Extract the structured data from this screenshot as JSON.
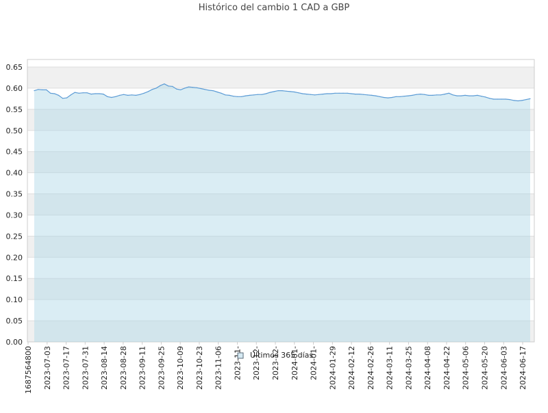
{
  "chart_data": {
    "type": "area",
    "title": "Histórico del cambio 1 CAD a GBP",
    "xlabel": "",
    "ylabel": "",
    "ylim": [
      0,
      0.65
    ],
    "y_ticks": [
      "0.00",
      "0.05",
      "0.10",
      "0.15",
      "0.20",
      "0.25",
      "0.30",
      "0.35",
      "0.40",
      "0.45",
      "0.50",
      "0.55",
      "0.60",
      "0.65"
    ],
    "x_tick_labels": [
      "1687564800",
      "2023-07-03",
      "2023-07-17",
      "2023-07-31",
      "2023-08-14",
      "2023-08-28",
      "2023-09-11",
      "2023-09-25",
      "2023-10-09",
      "2023-10-23",
      "2023-11-06",
      "2023-11-",
      "2023-12-",
      "2023-12-",
      "2024-01-",
      "2024-01-",
      "2024-01-29",
      "2024-02-12",
      "2024-02-26",
      "2024-03-11",
      "2024-03-25",
      "2024-04-08",
      "2024-04-22",
      "2024-05-06",
      "2024-05-20",
      "2024-06-03",
      "2024-06-17"
    ],
    "grid": true,
    "legend_position": "bottom-center",
    "colors": {
      "line": "#5b9bd5",
      "fill": "#add8e6",
      "band": "#f0f0f0"
    },
    "series": [
      {
        "name": "Últimos 365 días",
        "x": [
          "2023-06-24",
          "2023-06-27",
          "2023-06-30",
          "2023-07-03",
          "2023-07-06",
          "2023-07-09",
          "2023-07-12",
          "2023-07-15",
          "2023-07-18",
          "2023-07-21",
          "2023-07-24",
          "2023-07-27",
          "2023-07-30",
          "2023-08-02",
          "2023-08-05",
          "2023-08-08",
          "2023-08-11",
          "2023-08-14",
          "2023-08-17",
          "2023-08-20",
          "2023-08-23",
          "2023-08-26",
          "2023-08-29",
          "2023-09-01",
          "2023-09-04",
          "2023-09-07",
          "2023-09-10",
          "2023-09-13",
          "2023-09-16",
          "2023-09-19",
          "2023-09-22",
          "2023-09-25",
          "2023-09-28",
          "2023-10-01",
          "2023-10-04",
          "2023-10-07",
          "2023-10-10",
          "2023-10-13",
          "2023-10-16",
          "2023-10-19",
          "2023-10-22",
          "2023-10-25",
          "2023-10-28",
          "2023-10-31",
          "2023-11-03",
          "2023-11-06",
          "2023-11-09",
          "2023-11-12",
          "2023-11-15",
          "2023-11-18",
          "2023-11-21",
          "2023-11-24",
          "2023-11-27",
          "2023-11-30",
          "2023-12-03",
          "2023-12-06",
          "2023-12-09",
          "2023-12-12",
          "2023-12-15",
          "2023-12-18",
          "2023-12-21",
          "2023-12-24",
          "2023-12-27",
          "2023-12-30",
          "2024-01-02",
          "2024-01-05",
          "2024-01-08",
          "2024-01-11",
          "2024-01-14",
          "2024-01-17",
          "2024-01-20",
          "2024-01-23",
          "2024-01-26",
          "2024-01-29",
          "2024-02-01",
          "2024-02-04",
          "2024-02-07",
          "2024-02-10",
          "2024-02-13",
          "2024-02-16",
          "2024-02-19",
          "2024-02-22",
          "2024-02-25",
          "2024-02-28",
          "2024-03-02",
          "2024-03-05",
          "2024-03-08",
          "2024-03-11",
          "2024-03-14",
          "2024-03-17",
          "2024-03-20",
          "2024-03-23",
          "2024-03-26",
          "2024-03-29",
          "2024-04-01",
          "2024-04-04",
          "2024-04-07",
          "2024-04-10",
          "2024-04-13",
          "2024-04-16",
          "2024-04-19",
          "2024-04-22",
          "2024-04-25",
          "2024-04-28",
          "2024-05-01",
          "2024-05-04",
          "2024-05-07",
          "2024-05-10",
          "2024-05-13",
          "2024-05-16",
          "2024-05-19",
          "2024-05-22",
          "2024-05-25",
          "2024-05-28",
          "2024-05-31",
          "2024-06-03",
          "2024-06-06",
          "2024-06-09",
          "2024-06-12",
          "2024-06-15",
          "2024-06-18",
          "2024-06-21",
          "2024-06-24"
        ],
        "values": [
          0.594,
          0.597,
          0.596,
          0.596,
          0.588,
          0.587,
          0.583,
          0.576,
          0.577,
          0.584,
          0.59,
          0.588,
          0.589,
          0.589,
          0.586,
          0.587,
          0.587,
          0.586,
          0.58,
          0.578,
          0.58,
          0.583,
          0.585,
          0.583,
          0.584,
          0.583,
          0.585,
          0.588,
          0.592,
          0.597,
          0.6,
          0.606,
          0.61,
          0.605,
          0.604,
          0.598,
          0.596,
          0.6,
          0.603,
          0.602,
          0.601,
          0.599,
          0.597,
          0.595,
          0.594,
          0.591,
          0.588,
          0.584,
          0.583,
          0.581,
          0.58,
          0.58,
          0.582,
          0.583,
          0.584,
          0.585,
          0.585,
          0.587,
          0.59,
          0.592,
          0.594,
          0.594,
          0.593,
          0.592,
          0.591,
          0.589,
          0.587,
          0.586,
          0.585,
          0.584,
          0.585,
          0.586,
          0.587,
          0.587,
          0.588,
          0.588,
          0.588,
          0.588,
          0.587,
          0.586,
          0.586,
          0.585,
          0.584,
          0.583,
          0.582,
          0.58,
          0.578,
          0.577,
          0.578,
          0.58,
          0.58,
          0.581,
          0.582,
          0.583,
          0.585,
          0.586,
          0.585,
          0.583,
          0.583,
          0.584,
          0.584,
          0.586,
          0.588,
          0.584,
          0.582,
          0.582,
          0.583,
          0.582,
          0.582,
          0.583,
          0.581,
          0.579,
          0.576,
          0.574,
          0.574,
          0.574,
          0.574,
          0.573,
          0.571,
          0.57,
          0.571,
          0.573,
          0.575
        ]
      }
    ]
  }
}
